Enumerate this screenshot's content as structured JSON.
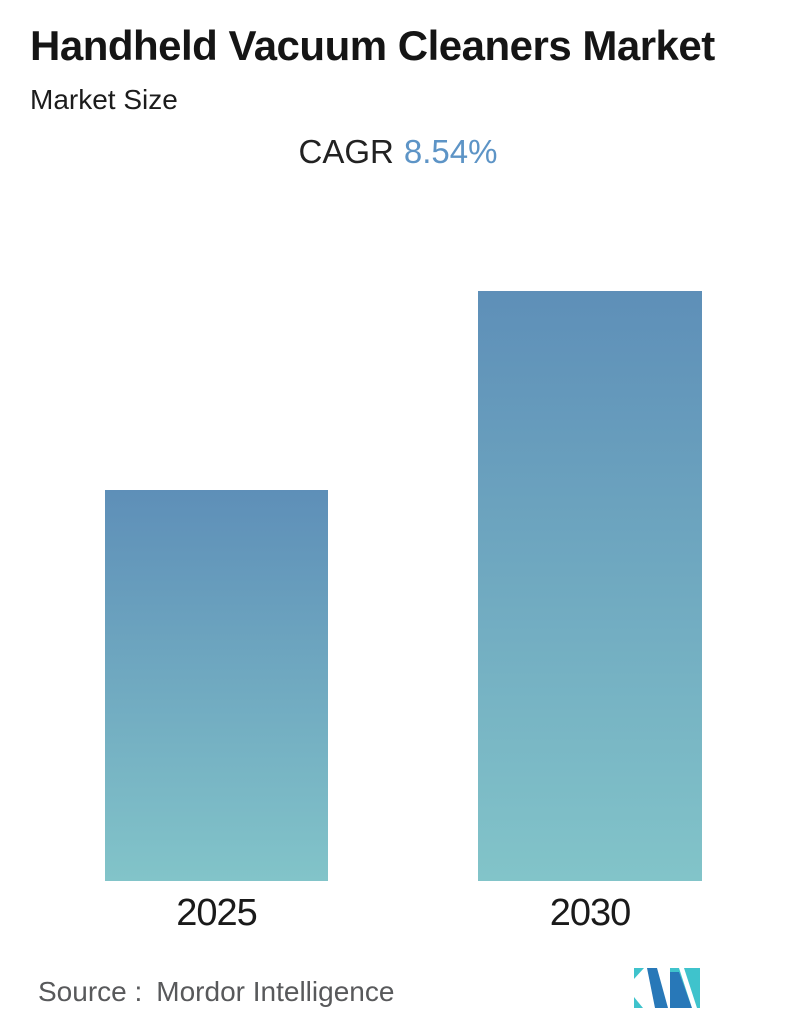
{
  "header": {
    "title": "Handheld Vacuum Cleaners Market",
    "subtitle": "Market Size"
  },
  "cagr": {
    "label": "CAGR",
    "value": "8.54%"
  },
  "chart_data": {
    "type": "bar",
    "title": "Handheld Vacuum Cleaners Market",
    "subtitle": "Market Size",
    "annotation": "CAGR 8.54%",
    "categories": [
      "2025",
      "2030"
    ],
    "values": [
      1.0,
      1.51
    ],
    "values_note": "No numeric axis or data labels shown; values are relative bar heights indexed to 2025 = 1.0. The 2030 bar is ~1.51x the 2025 bar, consistent with 8.54% CAGR over 5 years.",
    "xlabel": "",
    "ylabel": "",
    "axes_shown": false,
    "grid": false,
    "legend": false,
    "bar_gradient": {
      "top": "#5e8fb8",
      "bottom": "#82c4c9"
    }
  },
  "footer": {
    "source_prefix": "Source :",
    "source_name": "Mordor Intelligence"
  },
  "colors": {
    "text_primary": "#151515",
    "text_muted": "#58595b",
    "accent_blue": "#5d94c6",
    "bar_top": "#5e8fb8",
    "bar_bottom": "#82c4c9",
    "logo_teal": "#3fc3cc",
    "logo_blue": "#2878b8"
  }
}
